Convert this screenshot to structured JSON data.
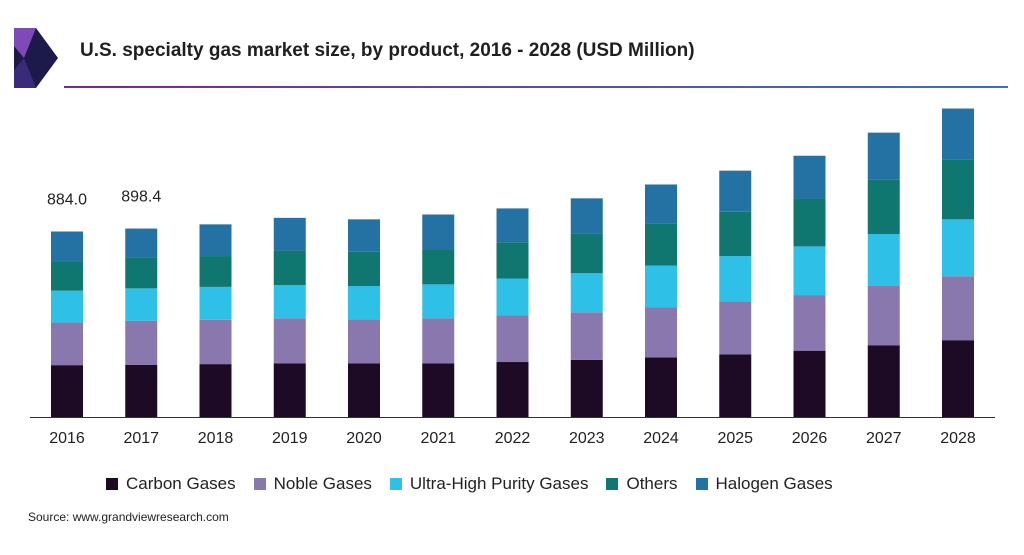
{
  "header": {
    "title": "U.S. specialty gas market size, by product, 2016 - 2028 (USD Million)",
    "logo_icon": "grand-view-research-logo-icon"
  },
  "colors": {
    "rule_start": "#7a2a8a",
    "rule_end": "#3a6ec8",
    "logo_dark": "#1b1a4a",
    "logo_purple": "#7e4ab5"
  },
  "footer": {
    "source": "Source: www.grandviewresearch.com"
  },
  "chart_data": {
    "type": "bar",
    "stacked": true,
    "categories": [
      "2016",
      "2017",
      "2018",
      "2019",
      "2020",
      "2021",
      "2022",
      "2023",
      "2024",
      "2025",
      "2026",
      "2027",
      "2028"
    ],
    "series": [
      {
        "name": "Carbon Gases",
        "color": "#1d0a24",
        "values": [
          247,
          249,
          252,
          256,
          255,
          256,
          262,
          272,
          284,
          298,
          316,
          342,
          366
        ]
      },
      {
        "name": "Noble Gases",
        "color": "#8878ad",
        "values": [
          203,
          210,
          211,
          214,
          210,
          214,
          222,
          227,
          238,
          253,
          265,
          284,
          305
        ]
      },
      {
        "name": "Ultra-High Purity Gases",
        "color": "#2ec0e6",
        "values": [
          152,
          154,
          157,
          158,
          159,
          162,
          176,
          186,
          200,
          216,
          232,
          246,
          271
        ]
      },
      {
        "name": "Others",
        "color": "#0f7770",
        "values": [
          141,
          145,
          147,
          165,
          163,
          166,
          173,
          191,
          201,
          211,
          228,
          258,
          286
        ]
      },
      {
        "name": "Halogen Gases",
        "color": "#2472a4",
        "values": [
          141,
          140,
          151,
          156,
          155,
          167,
          161,
          166,
          185,
          196,
          204,
          225,
          242
        ]
      }
    ],
    "data_labels": [
      {
        "category": "2016",
        "text": "884.0"
      },
      {
        "category": "2017",
        "text": "898.4"
      }
    ],
    "ylim": [
      0,
      1500
    ],
    "grid": false,
    "legend_position": "bottom"
  }
}
